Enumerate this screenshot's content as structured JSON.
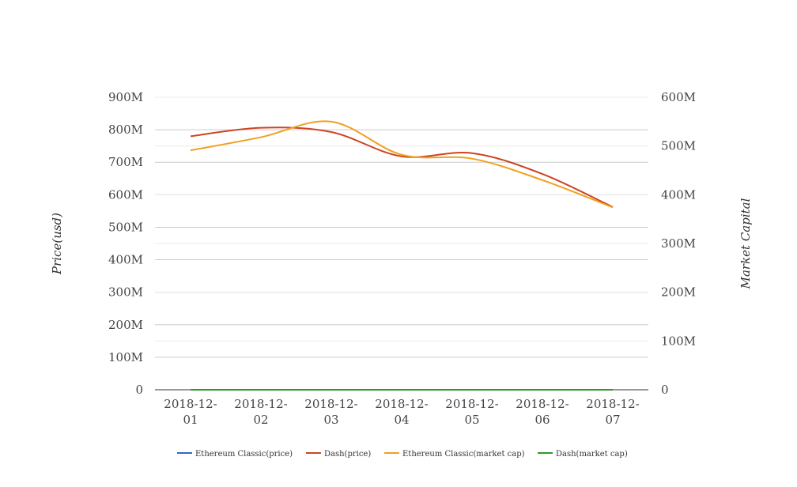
{
  "chart_data": {
    "type": "line",
    "categories": [
      "2018-12-01",
      "2018-12-02",
      "2018-12-03",
      "2018-12-04",
      "2018-12-05",
      "2018-12-06",
      "2018-12-07"
    ],
    "category_lines": [
      [
        "2018-12-",
        "01"
      ],
      [
        "2018-12-",
        "02"
      ],
      [
        "2018-12-",
        "03"
      ],
      [
        "2018-12-",
        "04"
      ],
      [
        "2018-12-",
        "05"
      ],
      [
        "2018-12-",
        "06"
      ],
      [
        "2018-12-",
        "07"
      ]
    ],
    "ylabel": "Price(usd)",
    "y2label": "Market Capital",
    "ylim": [
      0,
      900000000
    ],
    "y2lim": [
      0,
      600000000
    ],
    "yticks": [
      "0",
      "100M",
      "200M",
      "300M",
      "400M",
      "500M",
      "600M",
      "700M",
      "800M",
      "900M"
    ],
    "y2ticks": [
      "0",
      "100M",
      "200M",
      "300M",
      "400M",
      "500M",
      "600M"
    ],
    "grid": true,
    "legend_position": "bottom",
    "series": [
      {
        "name": "Ethereum Classic(price)",
        "axis": "left",
        "color": "#3366cc",
        "values": [
          4.1,
          4.3,
          4.6,
          4.2,
          4.1,
          3.9,
          3.6
        ]
      },
      {
        "name": "Dash(price)",
        "axis": "left",
        "color": "#cc4422",
        "values": [
          780000000,
          806000000,
          793000000,
          718000000,
          728000000,
          664000000,
          562000000
        ]
      },
      {
        "name": "Ethereum Classic(market cap)",
        "axis": "right",
        "color": "#f0a020",
        "values": [
          491000000,
          518000000,
          550000000,
          482000000,
          474000000,
          430000000,
          374000000
        ]
      },
      {
        "name": "Dash(market cap)",
        "axis": "right",
        "color": "#2a9a2a",
        "values": [
          90,
          92,
          95,
          88,
          86,
          80,
          75
        ]
      }
    ]
  }
}
